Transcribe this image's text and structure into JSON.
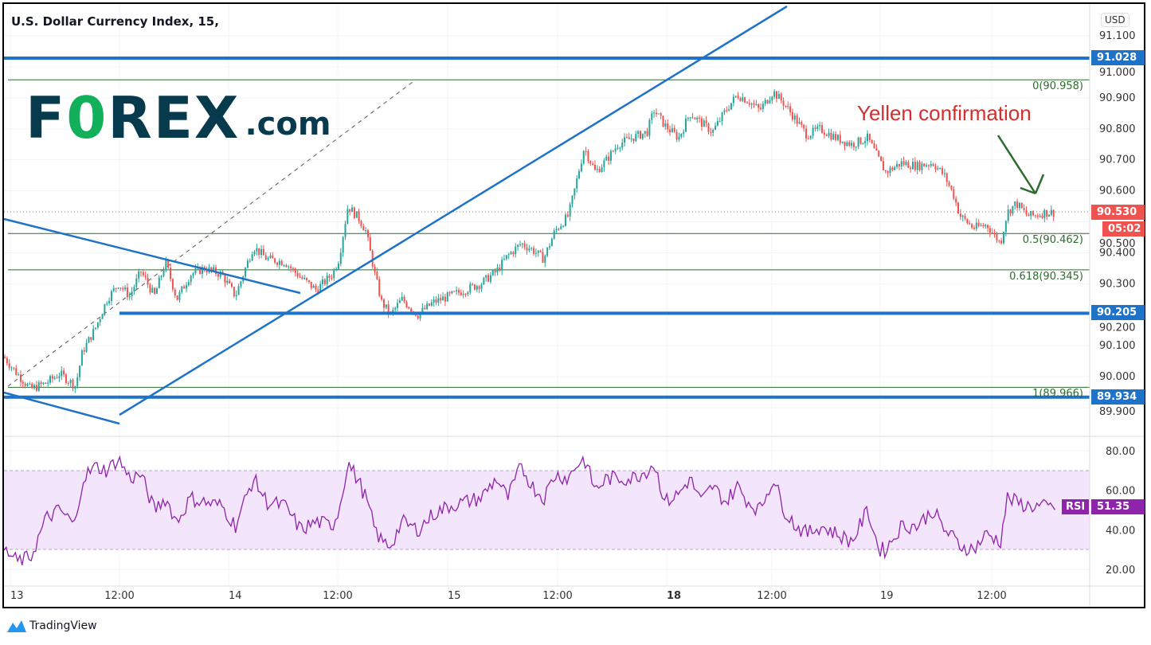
{
  "header": {
    "title": "U.S. Dollar Currency Index, 15,",
    "currency_button": "USD"
  },
  "logo": {
    "brand": "FOREX.com",
    "part1": "F",
    "part2": "0",
    "part3": "REX",
    "part4": ".com"
  },
  "footer": {
    "brand": "TradingView"
  },
  "colors": {
    "up": "#26a69a",
    "down": "#ef5350",
    "levels": "#1e73c8",
    "fib": "#2e6b2e",
    "rsi": "#8e24aa",
    "rsi_band": "#f3e5fb",
    "annotation": "#d32f2f",
    "arrow": "#2e6b2e"
  },
  "chart_data": [
    {
      "type": "candlestick",
      "interval": "15",
      "title": "U.S. Dollar Currency Index, 15,",
      "ylim": [
        89.87,
        91.13
      ],
      "yticks": [
        "91.100",
        "91.000",
        "90.900",
        "90.800",
        "90.700",
        "90.600",
        "90.500",
        "90.400",
        "90.300",
        "90.200",
        "90.100",
        "90.000",
        "89.900"
      ],
      "xticks": [
        "13",
        "12:00",
        "14",
        "12:00",
        "15",
        "12:00",
        "18",
        "12:00",
        "19",
        "12:00"
      ],
      "grid": true,
      "last_price": "90.530",
      "countdown": "05:02",
      "close_series": [
        [
          "12 23:15",
          90.065
        ],
        [
          "13 00:45",
          90.01
        ],
        [
          "13 02:15",
          89.96
        ],
        [
          "13 04:00",
          89.98
        ],
        [
          "13 05:30",
          90.01
        ],
        [
          "13 07:15",
          89.97
        ],
        [
          "13 08:00",
          90.08
        ],
        [
          "13 09:30",
          90.16
        ],
        [
          "13 10:45",
          90.25
        ],
        [
          "13 12:00",
          90.3
        ],
        [
          "13 13:15",
          90.26
        ],
        [
          "13 14:30",
          90.34
        ],
        [
          "13 16:00",
          90.26
        ],
        [
          "13 17:15",
          90.37
        ],
        [
          "13 18:30",
          90.25
        ],
        [
          "13 20:00",
          90.33
        ],
        [
          "13 21:30",
          90.35
        ],
        [
          "13 23:30",
          90.33
        ],
        [
          "14 01:00",
          90.26
        ],
        [
          "14 03:00",
          90.42
        ],
        [
          "14 04:30",
          90.38
        ],
        [
          "14 06:30",
          90.37
        ],
        [
          "14 08:15",
          90.32
        ],
        [
          "14 10:00",
          90.28
        ],
        [
          "14 11:45",
          90.33
        ],
        [
          "14 12:30",
          90.38
        ],
        [
          "14 13:30",
          90.55
        ],
        [
          "14 14:45",
          90.51
        ],
        [
          "14 15:30",
          90.47
        ],
        [
          "14 16:30",
          90.33
        ],
        [
          "14 17:15",
          90.24
        ],
        [
          "14 18:15",
          90.2
        ],
        [
          "14 19:30",
          90.25
        ],
        [
          "14 21:15",
          90.2
        ],
        [
          "14 23:00",
          90.24
        ],
        [
          "15 00:45",
          90.26
        ],
        [
          "15 02:30",
          90.28
        ],
        [
          "15 04:15",
          90.3
        ],
        [
          "15 06:00",
          90.34
        ],
        [
          "15 07:15",
          90.39
        ],
        [
          "15 08:45",
          90.43
        ],
        [
          "15 10:00",
          90.41
        ],
        [
          "15 11:15",
          90.38
        ],
        [
          "15 12:30",
          90.47
        ],
        [
          "15 14:00",
          90.52
        ],
        [
          "15 14:45",
          90.61
        ],
        [
          "15 15:45",
          90.74
        ],
        [
          "15 17:00",
          90.66
        ],
        [
          "15 18:15",
          90.7
        ],
        [
          "15 19:30",
          90.75
        ],
        [
          "15 21:00",
          90.77
        ],
        [
          "15 22:45",
          90.79
        ],
        [
          "15 23:30",
          90.86
        ],
        [
          "18 00:45",
          90.81
        ],
        [
          "18 02:15",
          90.77
        ],
        [
          "18 03:30",
          90.85
        ],
        [
          "18 04:45",
          90.82
        ],
        [
          "18 06:00",
          90.79
        ],
        [
          "18 07:30",
          90.86
        ],
        [
          "18 08:45",
          90.91
        ],
        [
          "18 10:00",
          90.89
        ],
        [
          "18 11:15",
          90.86
        ],
        [
          "18 12:45",
          90.92
        ],
        [
          "18 14:00",
          90.88
        ],
        [
          "18 15:15",
          90.83
        ],
        [
          "18 16:30",
          90.78
        ],
        [
          "18 18:00",
          90.8
        ],
        [
          "18 19:45",
          90.77
        ],
        [
          "18 21:30",
          90.75
        ],
        [
          "18 23:15",
          90.77
        ],
        [
          "19 00:30",
          90.7
        ],
        [
          "19 01:15",
          90.66
        ],
        [
          "19 03:00",
          90.69
        ],
        [
          "19 04:45",
          90.68
        ],
        [
          "19 06:30",
          90.69
        ],
        [
          "19 07:45",
          90.65
        ],
        [
          "19 08:45",
          90.59
        ],
        [
          "19 09:30",
          90.52
        ],
        [
          "19 11:00",
          90.48
        ],
        [
          "19 12:30",
          90.49
        ],
        [
          "19 14:00",
          90.43
        ],
        [
          "19 14:45",
          90.53
        ],
        [
          "19 15:45",
          90.56
        ],
        [
          "19 17:00",
          90.52
        ],
        [
          "19 17:45",
          90.52
        ],
        [
          "19 19:00",
          90.53
        ]
      ],
      "horizontal_levels": [
        "91.028",
        "90.205",
        "89.934"
      ],
      "fibonacci": [
        {
          "label": "0(90.958)",
          "level": 90.958
        },
        {
          "label": "0.5(90.462)",
          "level": 90.462
        },
        {
          "label": "0.618(90.345)",
          "level": 90.345
        },
        {
          "label": "1(89.966)",
          "level": 89.966
        }
      ],
      "annotation": "Yellen confirmation"
    },
    {
      "type": "line",
      "name": "RSI",
      "ylim": [
        15,
        88
      ],
      "yticks": [
        "80.00",
        "60.00",
        "40.00",
        "20.00"
      ],
      "band": [
        30,
        70
      ],
      "last_value": "51.35",
      "label": "RSI",
      "values": [
        30,
        24,
        26,
        46,
        50,
        42,
        66,
        72,
        70,
        76,
        66,
        68,
        50,
        56,
        44,
        56,
        54,
        52,
        42,
        66,
        54,
        52,
        40,
        44,
        42,
        50,
        74,
        64,
        56,
        40,
        34,
        32,
        44,
        40,
        48,
        52,
        54,
        56,
        66,
        56,
        72,
        62,
        56,
        68,
        66,
        72,
        76,
        60,
        66,
        66,
        66,
        70,
        74,
        54,
        58,
        66,
        54,
        62,
        54,
        62,
        54,
        50,
        66,
        50,
        42,
        38,
        42,
        38,
        34,
        50,
        30,
        30,
        42,
        42,
        50,
        40,
        36,
        32,
        30,
        38,
        34,
        56,
        54,
        52,
        52,
        51.35
      ]
    }
  ]
}
